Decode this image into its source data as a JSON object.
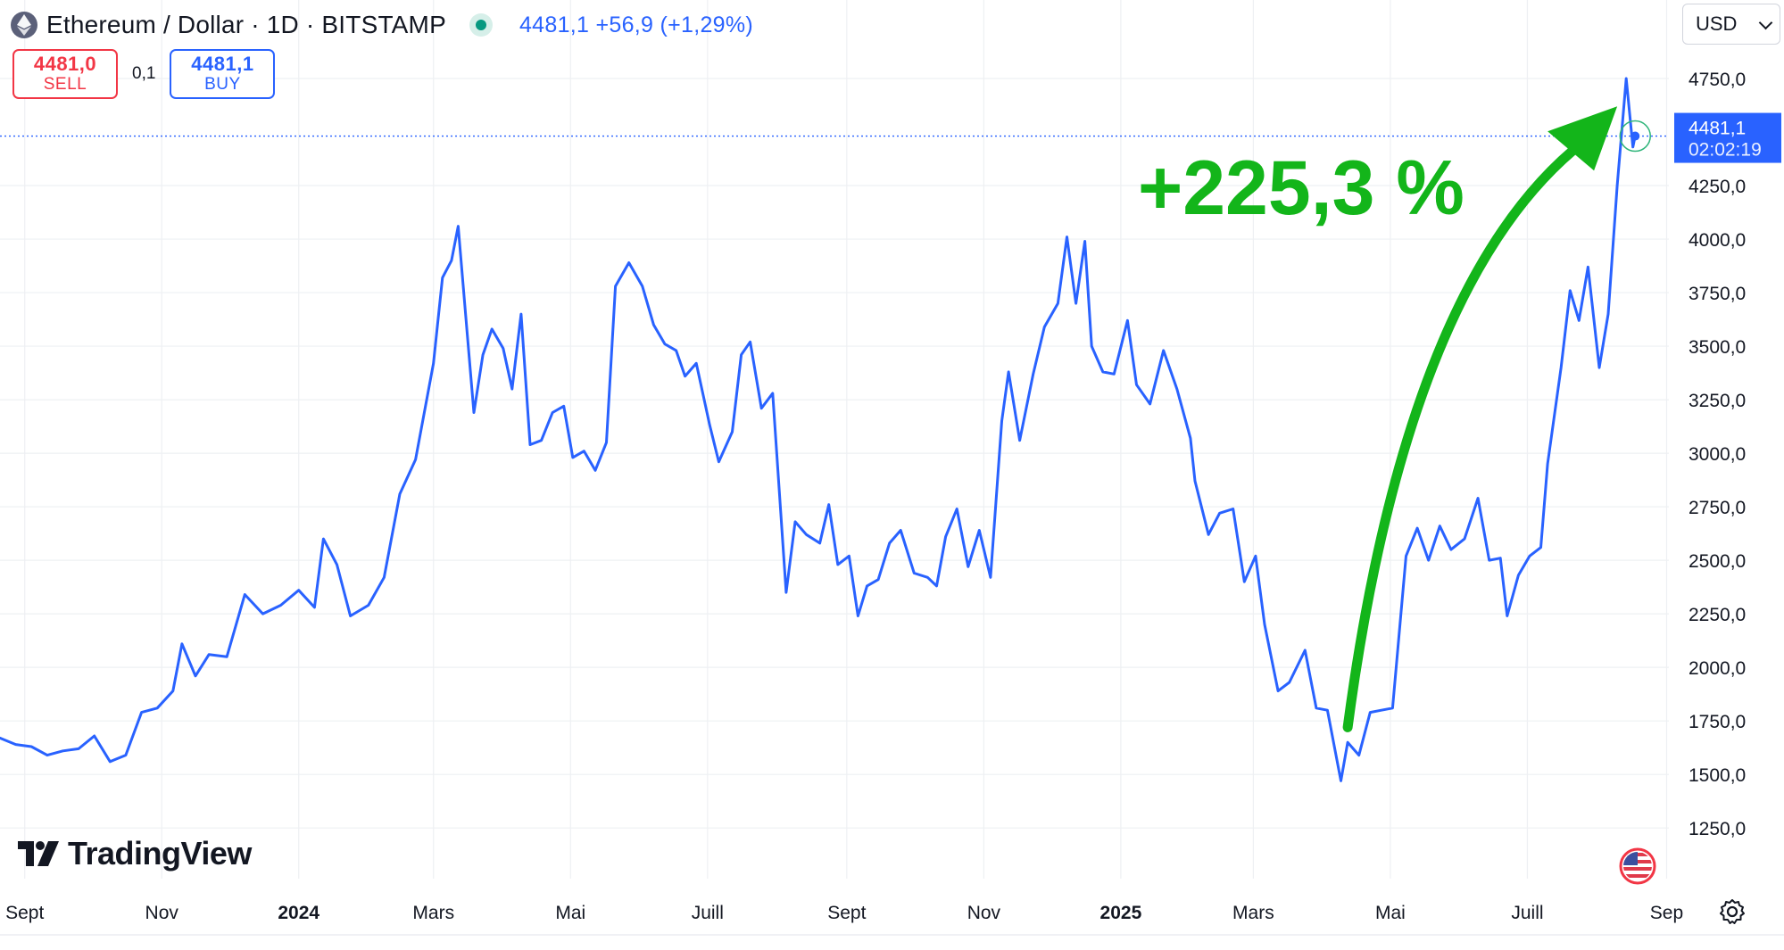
{
  "header": {
    "title": "Ethereum / Dollar · 1D · BITSTAMP",
    "quote": "4481,1  +56,9 (+1,29%)"
  },
  "trade": {
    "sell_price": "4481,0",
    "sell_label": "SELL",
    "spread": "0,1",
    "buy_price": "4481,1",
    "buy_label": "BUY"
  },
  "currency": "USD",
  "brand": "TradingView",
  "colors": {
    "line": "#2962ff",
    "annotation": "#13b51a",
    "sell": "#f23645",
    "live": "#089981",
    "label_bg": "#2962ff"
  },
  "chart_data": {
    "type": "line",
    "series": [
      {
        "values": [
          {
            "x": "2023-08-21",
            "y": 1670
          },
          {
            "x": "2023-08-28",
            "y": 1640
          },
          {
            "x": "2023-09-04",
            "y": 1630
          },
          {
            "x": "2023-09-11",
            "y": 1590
          },
          {
            "x": "2023-09-18",
            "y": 1610
          },
          {
            "x": "2023-09-25",
            "y": 1620
          },
          {
            "x": "2023-10-02",
            "y": 1680
          },
          {
            "x": "2023-10-09",
            "y": 1560
          },
          {
            "x": "2023-10-16",
            "y": 1590
          },
          {
            "x": "2023-10-23",
            "y": 1790
          },
          {
            "x": "2023-10-30",
            "y": 1810
          },
          {
            "x": "2023-11-06",
            "y": 1890
          },
          {
            "x": "2023-11-10",
            "y": 2110
          },
          {
            "x": "2023-11-16",
            "y": 1960
          },
          {
            "x": "2023-11-22",
            "y": 2060
          },
          {
            "x": "2023-11-30",
            "y": 2050
          },
          {
            "x": "2023-12-08",
            "y": 2340
          },
          {
            "x": "2023-12-16",
            "y": 2250
          },
          {
            "x": "2023-12-24",
            "y": 2290
          },
          {
            "x": "2024-01-01",
            "y": 2360
          },
          {
            "x": "2024-01-08",
            "y": 2280
          },
          {
            "x": "2024-01-12",
            "y": 2600
          },
          {
            "x": "2024-01-18",
            "y": 2480
          },
          {
            "x": "2024-01-24",
            "y": 2240
          },
          {
            "x": "2024-02-01",
            "y": 2290
          },
          {
            "x": "2024-02-08",
            "y": 2420
          },
          {
            "x": "2024-02-15",
            "y": 2810
          },
          {
            "x": "2024-02-22",
            "y": 2970
          },
          {
            "x": "2024-03-01",
            "y": 3420
          },
          {
            "x": "2024-03-05",
            "y": 3820
          },
          {
            "x": "2024-03-09",
            "y": 3900
          },
          {
            "x": "2024-03-12",
            "y": 4060
          },
          {
            "x": "2024-03-16",
            "y": 3560
          },
          {
            "x": "2024-03-19",
            "y": 3190
          },
          {
            "x": "2024-03-23",
            "y": 3460
          },
          {
            "x": "2024-03-27",
            "y": 3580
          },
          {
            "x": "2024-04-01",
            "y": 3490
          },
          {
            "x": "2024-04-05",
            "y": 3300
          },
          {
            "x": "2024-04-09",
            "y": 3650
          },
          {
            "x": "2024-04-13",
            "y": 3040
          },
          {
            "x": "2024-04-18",
            "y": 3060
          },
          {
            "x": "2024-04-23",
            "y": 3190
          },
          {
            "x": "2024-04-28",
            "y": 3220
          },
          {
            "x": "2024-05-02",
            "y": 2980
          },
          {
            "x": "2024-05-07",
            "y": 3010
          },
          {
            "x": "2024-05-12",
            "y": 2920
          },
          {
            "x": "2024-05-17",
            "y": 3050
          },
          {
            "x": "2024-05-21",
            "y": 3780
          },
          {
            "x": "2024-05-27",
            "y": 3890
          },
          {
            "x": "2024-06-02",
            "y": 3780
          },
          {
            "x": "2024-06-07",
            "y": 3600
          },
          {
            "x": "2024-06-12",
            "y": 3510
          },
          {
            "x": "2024-06-17",
            "y": 3480
          },
          {
            "x": "2024-06-21",
            "y": 3360
          },
          {
            "x": "2024-06-26",
            "y": 3420
          },
          {
            "x": "2024-07-02",
            "y": 3130
          },
          {
            "x": "2024-07-06",
            "y": 2960
          },
          {
            "x": "2024-07-12",
            "y": 3100
          },
          {
            "x": "2024-07-16",
            "y": 3460
          },
          {
            "x": "2024-07-20",
            "y": 3520
          },
          {
            "x": "2024-07-25",
            "y": 3210
          },
          {
            "x": "2024-07-30",
            "y": 3280
          },
          {
            "x": "2024-08-05",
            "y": 2350
          },
          {
            "x": "2024-08-09",
            "y": 2680
          },
          {
            "x": "2024-08-14",
            "y": 2620
          },
          {
            "x": "2024-08-20",
            "y": 2580
          },
          {
            "x": "2024-08-24",
            "y": 2760
          },
          {
            "x": "2024-08-28",
            "y": 2480
          },
          {
            "x": "2024-09-02",
            "y": 2520
          },
          {
            "x": "2024-09-06",
            "y": 2240
          },
          {
            "x": "2024-09-10",
            "y": 2380
          },
          {
            "x": "2024-09-15",
            "y": 2410
          },
          {
            "x": "2024-09-20",
            "y": 2580
          },
          {
            "x": "2024-09-25",
            "y": 2640
          },
          {
            "x": "2024-10-01",
            "y": 2440
          },
          {
            "x": "2024-10-07",
            "y": 2420
          },
          {
            "x": "2024-10-11",
            "y": 2380
          },
          {
            "x": "2024-10-15",
            "y": 2610
          },
          {
            "x": "2024-10-20",
            "y": 2740
          },
          {
            "x": "2024-10-25",
            "y": 2470
          },
          {
            "x": "2024-10-30",
            "y": 2640
          },
          {
            "x": "2024-11-04",
            "y": 2420
          },
          {
            "x": "2024-11-09",
            "y": 3150
          },
          {
            "x": "2024-11-12",
            "y": 3380
          },
          {
            "x": "2024-11-17",
            "y": 3060
          },
          {
            "x": "2024-11-23",
            "y": 3370
          },
          {
            "x": "2024-11-28",
            "y": 3590
          },
          {
            "x": "2024-12-04",
            "y": 3700
          },
          {
            "x": "2024-12-08",
            "y": 4010
          },
          {
            "x": "2024-12-12",
            "y": 3700
          },
          {
            "x": "2024-12-16",
            "y": 3990
          },
          {
            "x": "2024-12-19",
            "y": 3500
          },
          {
            "x": "2024-12-24",
            "y": 3380
          },
          {
            "x": "2024-12-29",
            "y": 3370
          },
          {
            "x": "2025-01-04",
            "y": 3620
          },
          {
            "x": "2025-01-08",
            "y": 3320
          },
          {
            "x": "2025-01-14",
            "y": 3230
          },
          {
            "x": "2025-01-20",
            "y": 3480
          },
          {
            "x": "2025-01-26",
            "y": 3300
          },
          {
            "x": "2025-02-01",
            "y": 3070
          },
          {
            "x": "2025-02-03",
            "y": 2870
          },
          {
            "x": "2025-02-09",
            "y": 2620
          },
          {
            "x": "2025-02-14",
            "y": 2720
          },
          {
            "x": "2025-02-20",
            "y": 2740
          },
          {
            "x": "2025-02-25",
            "y": 2400
          },
          {
            "x": "2025-03-02",
            "y": 2520
          },
          {
            "x": "2025-03-06",
            "y": 2200
          },
          {
            "x": "2025-03-12",
            "y": 1890
          },
          {
            "x": "2025-03-17",
            "y": 1930
          },
          {
            "x": "2025-03-24",
            "y": 2080
          },
          {
            "x": "2025-03-29",
            "y": 1810
          },
          {
            "x": "2025-04-03",
            "y": 1800
          },
          {
            "x": "2025-04-09",
            "y": 1470
          },
          {
            "x": "2025-04-12",
            "y": 1650
          },
          {
            "x": "2025-04-17",
            "y": 1590
          },
          {
            "x": "2025-04-22",
            "y": 1790
          },
          {
            "x": "2025-04-27",
            "y": 1800
          },
          {
            "x": "2025-05-02",
            "y": 1810
          },
          {
            "x": "2025-05-08",
            "y": 2520
          },
          {
            "x": "2025-05-13",
            "y": 2650
          },
          {
            "x": "2025-05-18",
            "y": 2500
          },
          {
            "x": "2025-05-23",
            "y": 2660
          },
          {
            "x": "2025-05-28",
            "y": 2550
          },
          {
            "x": "2025-06-03",
            "y": 2600
          },
          {
            "x": "2025-06-09",
            "y": 2790
          },
          {
            "x": "2025-06-14",
            "y": 2500
          },
          {
            "x": "2025-06-19",
            "y": 2510
          },
          {
            "x": "2025-06-22",
            "y": 2240
          },
          {
            "x": "2025-06-27",
            "y": 2430
          },
          {
            "x": "2025-07-02",
            "y": 2520
          },
          {
            "x": "2025-07-07",
            "y": 2560
          },
          {
            "x": "2025-07-10",
            "y": 2950
          },
          {
            "x": "2025-07-16",
            "y": 3400
          },
          {
            "x": "2025-07-20",
            "y": 3760
          },
          {
            "x": "2025-07-24",
            "y": 3620
          },
          {
            "x": "2025-07-28",
            "y": 3870
          },
          {
            "x": "2025-08-02",
            "y": 3400
          },
          {
            "x": "2025-08-06",
            "y": 3650
          },
          {
            "x": "2025-08-10",
            "y": 4250
          },
          {
            "x": "2025-08-14",
            "y": 4750
          },
          {
            "x": "2025-08-17",
            "y": 4430
          },
          {
            "x": "2025-08-18",
            "y": 4481.1
          }
        ]
      }
    ],
    "x_tick_labels": [
      {
        "x": "2023-09-01",
        "label": "Sept",
        "bold": false
      },
      {
        "x": "2023-11-01",
        "label": "Nov",
        "bold": false
      },
      {
        "x": "2024-01-01",
        "label": "2024",
        "bold": true
      },
      {
        "x": "2024-03-01",
        "label": "Mars",
        "bold": false
      },
      {
        "x": "2024-05-01",
        "label": "Mai",
        "bold": false
      },
      {
        "x": "2024-07-01",
        "label": "Juill",
        "bold": false
      },
      {
        "x": "2024-09-01",
        "label": "Sept",
        "bold": false
      },
      {
        "x": "2024-11-01",
        "label": "Nov",
        "bold": false
      },
      {
        "x": "2025-01-01",
        "label": "2025",
        "bold": true
      },
      {
        "x": "2025-03-01",
        "label": "Mars",
        "bold": false
      },
      {
        "x": "2025-05-01",
        "label": "Mai",
        "bold": false
      },
      {
        "x": "2025-07-01",
        "label": "Juill",
        "bold": false
      },
      {
        "x": "2025-09-01",
        "label": "Sep",
        "bold": false
      }
    ],
    "y_ticks": [
      1250,
      1500,
      1750,
      2000,
      2250,
      2500,
      2750,
      3000,
      3250,
      3500,
      3750,
      4000,
      4250,
      4750
    ],
    "y_tick_labels": [
      "1250,0",
      "1500,0",
      "1750,0",
      "2000,0",
      "2250,0",
      "2500,0",
      "2750,0",
      "3000,0",
      "3250,0",
      "3500,0",
      "3750,0",
      "4000,0",
      "4250,0",
      "4750,0"
    ],
    "ylim": [
      1180,
      4950
    ],
    "xlim": [
      "2023-08-21",
      "2025-09-02"
    ],
    "grid": true,
    "last_price": {
      "value": 4481.1,
      "label": "4481,1",
      "countdown": "02:02:19"
    },
    "annotation": {
      "text": "+225,3 %",
      "arrow_from": {
        "x": "2025-04-12",
        "y": 1720
      },
      "arrow_to": {
        "x": "2025-08-10",
        "y": 4620
      }
    }
  }
}
